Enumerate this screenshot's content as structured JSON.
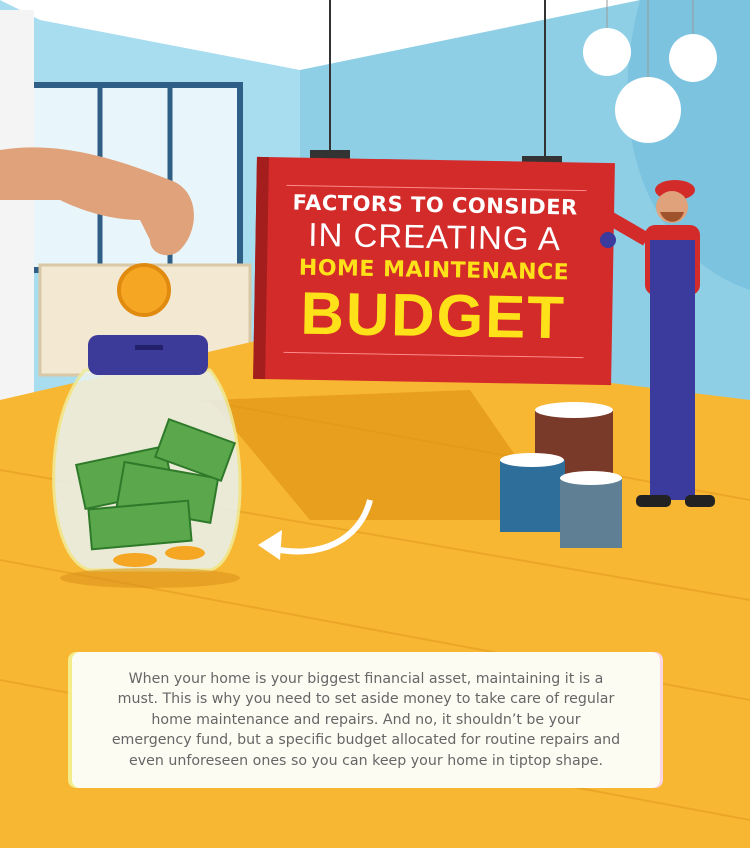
{
  "sign": {
    "line1": "FACTORS TO CONSIDER",
    "line2": "IN CREATING A",
    "line3": "HOME MAINTENANCE",
    "line4": "BUDGET"
  },
  "intro": {
    "lines": [
      "When your home is your biggest financial asset, maintaining it is a",
      "must. This is why you need to set aside money to take care of regular",
      "home maintenance and repairs. And no, it shouldn’t be your",
      "emergency fund, but a specific budget allocated for routine repairs and",
      "even unforeseen ones so you can keep your home in tiptop shape."
    ]
  },
  "colors": {
    "sign_red": "#d32a2a",
    "title_yellow": "#ffe11a",
    "floor": "#f7b733",
    "wall": "#9fd3e8"
  }
}
